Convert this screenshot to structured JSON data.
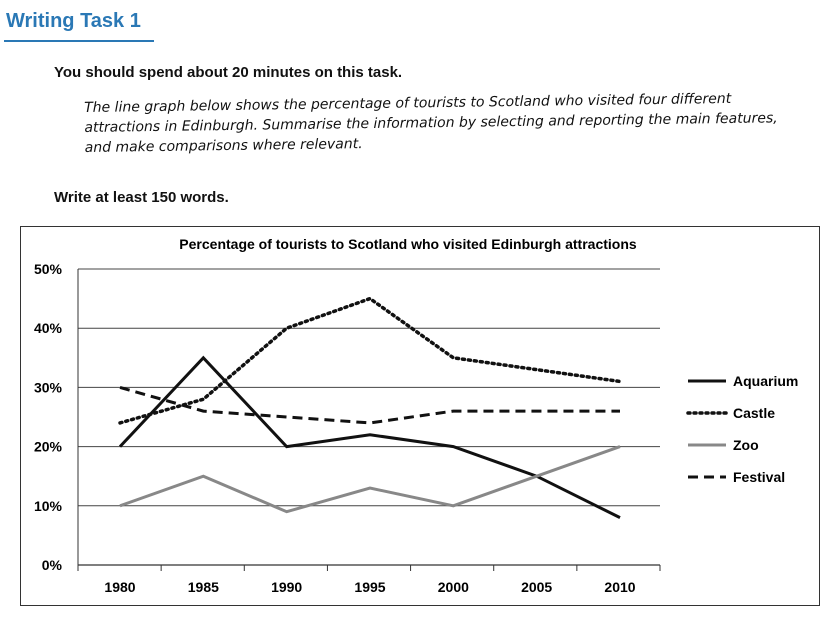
{
  "header": {
    "title": "Writing Task 1",
    "instruction": "You should spend about 20 minutes on this task.",
    "prompt": "The line graph below shows the percentage of tourists to Scotland who visited four different attractions in Edinburgh. Summarise the information by selecting and reporting the main features, and make comparisons where relevant.",
    "word_count": "Write at least 150 words."
  },
  "chart_data": {
    "type": "line",
    "title": "Percentage of tourists to Scotland who visited Edinburgh attractions",
    "xlabel": "",
    "ylabel": "",
    "categories": [
      "1980",
      "1985",
      "1990",
      "1995",
      "2000",
      "2005",
      "2010"
    ],
    "yticks": [
      "0%",
      "10%",
      "20%",
      "30%",
      "40%",
      "50%"
    ],
    "ylim": [
      0,
      50
    ],
    "grid": true,
    "legend_position": "right",
    "series": [
      {
        "name": "Aquarium",
        "style": "solid",
        "color": "#111111",
        "values": [
          20,
          35,
          20,
          22,
          20,
          15,
          8
        ]
      },
      {
        "name": "Castle",
        "style": "dotted",
        "color": "#111111",
        "values": [
          24,
          28,
          40,
          45,
          35,
          33,
          31
        ]
      },
      {
        "name": "Zoo",
        "style": "solid-grey",
        "color": "#888888",
        "values": [
          10,
          15,
          9,
          13,
          10,
          15,
          20
        ]
      },
      {
        "name": "Festival",
        "style": "dashed",
        "color": "#111111",
        "values": [
          30,
          26,
          25,
          24,
          26,
          26,
          26
        ]
      }
    ]
  }
}
